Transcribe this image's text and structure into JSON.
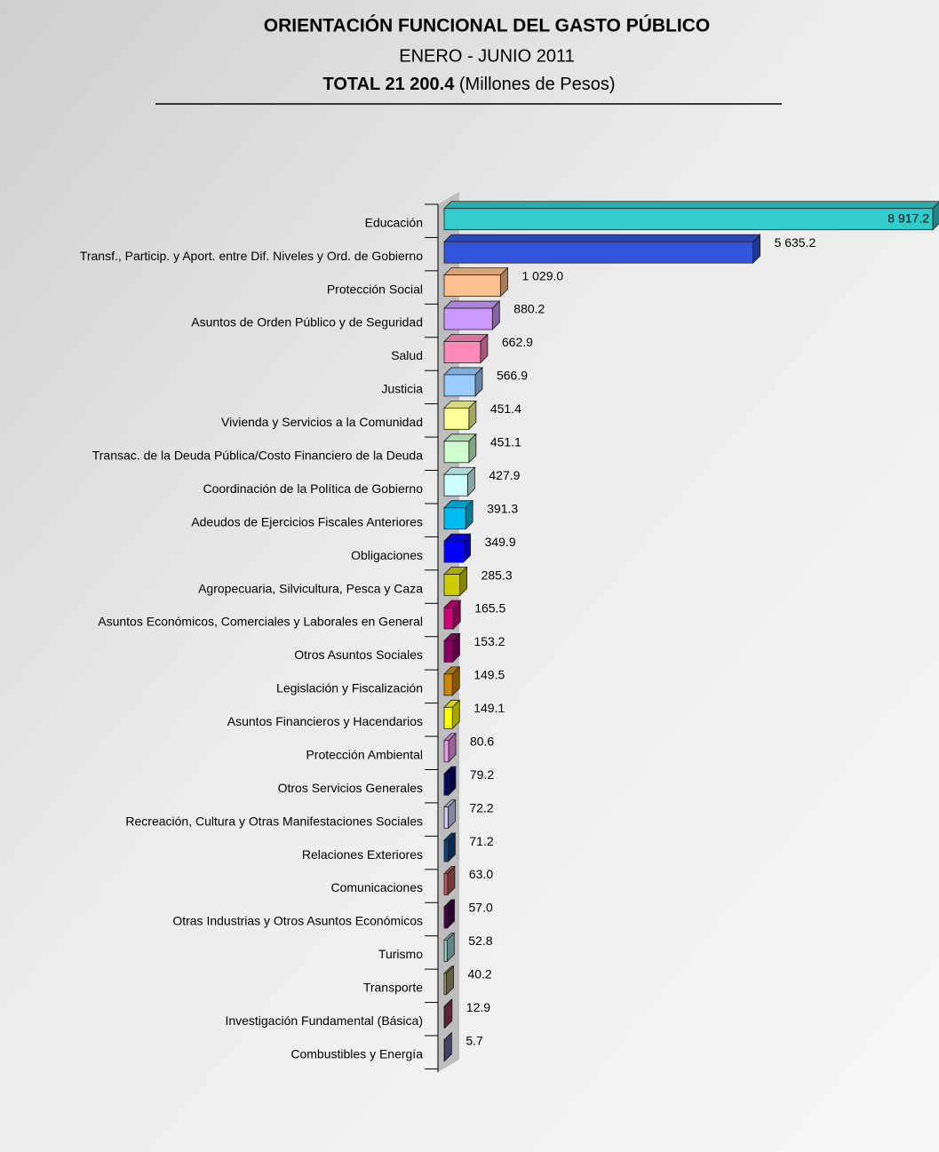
{
  "chart_data": {
    "type": "bar",
    "orientation": "horizontal",
    "title": "ORIENTACIÓN FUNCIONAL DEL GASTO PÚBLICO",
    "subtitle": "ENERO - JUNIO 2011",
    "total_label": "TOTAL 21 200.4",
    "units": "(Millones de Pesos)",
    "categories": [
      "Educación",
      "Transf., Particip. y Aport. entre Dif. Niveles y Ord. de Gobierno",
      "Protección Social",
      "Asuntos de Orden Público y de Seguridad",
      "Salud",
      "Justicia",
      "Vivienda y Servicios a la Comunidad",
      "Transac. de la Deuda Pública/Costo Financiero de la Deuda",
      "Coordinación de la Política de Gobierno",
      "Adeudos de Ejercicios Fiscales Anteriores",
      "Obligaciones",
      "Agropecuaria, Silvicultura, Pesca y Caza",
      "Asuntos Económicos, Comerciales y Laborales en General",
      "Otros Asuntos Sociales",
      "Legislación y Fiscalización",
      "Asuntos Financieros y Hacendarios",
      "Protección Ambiental",
      "Otros Servicios Generales",
      "Recreación, Cultura y Otras Manifestaciones Sociales",
      "Relaciones Exteriores",
      "Comunicaciones",
      "Otras Industrias y Otros Asuntos Económicos",
      "Turismo",
      "Transporte",
      "Investigación Fundamental (Básica)",
      "Combustibles y Energía"
    ],
    "values": [
      8917.2,
      5635.2,
      1029.0,
      880.2,
      662.9,
      566.9,
      451.4,
      451.1,
      427.9,
      391.3,
      349.9,
      285.3,
      165.5,
      153.2,
      149.5,
      149.1,
      80.6,
      79.2,
      72.2,
      71.2,
      63.0,
      57.0,
      52.8,
      40.2,
      12.9,
      5.7
    ],
    "value_labels": [
      "8 917.2",
      "5 635.2",
      "1 029.0",
      "880.2",
      "662.9",
      "566.9",
      "451.4",
      "451.1",
      "427.9",
      "391.3",
      "349.9",
      "285.3",
      "165.5",
      "153.2",
      "149.5",
      "149.1",
      "80.6",
      "79.2",
      "72.2",
      "71.2",
      "63.0",
      "57.0",
      "52.8",
      "40.2",
      "12.9",
      "5.7"
    ],
    "colors": [
      "#33cccc",
      "#3355dd",
      "#ffc090",
      "#cc99ff",
      "#ff88bb",
      "#99ccff",
      "#ffff99",
      "#ccffcc",
      "#ccffff",
      "#00bbee",
      "#0000ff",
      "#cccc00",
      "#cc0077",
      "#880066",
      "#cc8800",
      "#ffff00",
      "#ee99ee",
      "#000066",
      "#ccccff",
      "#004488",
      "#bb5555",
      "#440044",
      "#99cccc",
      "#999966",
      "#993355",
      "#6666aa"
    ]
  }
}
